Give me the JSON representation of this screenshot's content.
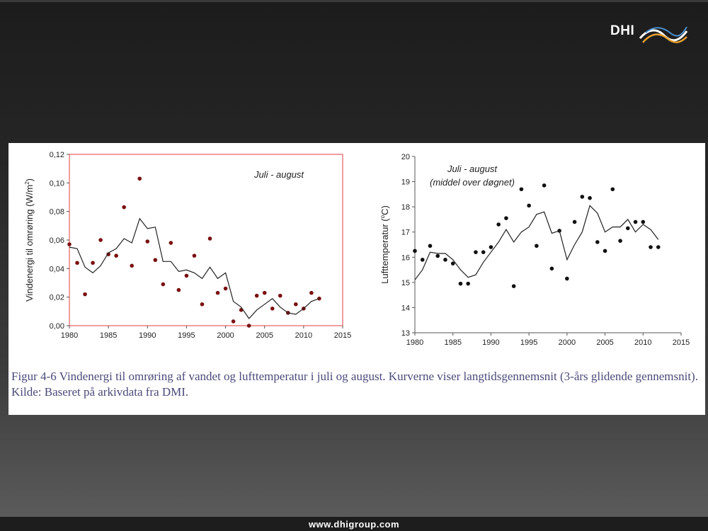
{
  "logo": {
    "text": "DHI"
  },
  "caption": "Figur 4-6 Vindenergi til omrøring af vandet og lufttemperatur i juli og august. Kurverne viser langtidsgennemsnit (3-års glidende gennemsnit). Kilde: Baseret på arkivdata fra DMI.",
  "footer": {
    "url": "www.dhigroup.com"
  },
  "chart_data": [
    {
      "type": "scatter",
      "annotation": "Juli - august",
      "ylabel_prefix": "Vindenergi til omrøring (W/m",
      "ylabel_sup": "2",
      "ylabel_suffix": ")",
      "xlabel": "",
      "xlim": [
        1980,
        2015
      ],
      "ylim": [
        0,
        0.12
      ],
      "xticks": [
        1980,
        1985,
        1990,
        1995,
        2000,
        2005,
        2010,
        2015
      ],
      "yticks": [
        0,
        0.02,
        0.04,
        0.06,
        0.08,
        0.1,
        0.12
      ],
      "ytick_labels": [
        "0,00",
        "0,02",
        "0,04",
        "0,06",
        "0,08",
        "0,10",
        "0,12"
      ],
      "grid": false,
      "frame_color": "#e03c3c",
      "series": [
        {
          "type": "scatter",
          "color": "#7a1010",
          "x": [
            1980,
            1981,
            1982,
            1983,
            1984,
            1985,
            1986,
            1987,
            1988,
            1989,
            1990,
            1991,
            1992,
            1993,
            1994,
            1995,
            1996,
            1997,
            1998,
            1999,
            2000,
            2001,
            2002,
            2003,
            2004,
            2005,
            2006,
            2007,
            2008,
            2009,
            2010,
            2011,
            2012
          ],
          "y": [
            0.057,
            0.044,
            0.022,
            0.044,
            0.06,
            0.05,
            0.049,
            0.083,
            0.042,
            0.103,
            0.059,
            0.046,
            0.029,
            0.058,
            0.025,
            0.035,
            0.049,
            0.015,
            0.061,
            0.023,
            0.026,
            0.003,
            0.011,
            0.0,
            0.021,
            0.023,
            0.012,
            0.021,
            0.009,
            0.015,
            0.012,
            0.023,
            0.019
          ]
        },
        {
          "type": "line",
          "color": "#222222",
          "x": [
            1980,
            1981,
            1982,
            1983,
            1984,
            1985,
            1986,
            1987,
            1988,
            1989,
            1990,
            1991,
            1992,
            1993,
            1994,
            1995,
            1996,
            1997,
            1998,
            1999,
            2000,
            2001,
            2002,
            2003,
            2004,
            2005,
            2006,
            2007,
            2008,
            2009,
            2010,
            2011,
            2012
          ],
          "y": [
            0.055,
            0.054,
            0.041,
            0.037,
            0.042,
            0.051,
            0.054,
            0.061,
            0.058,
            0.075,
            0.068,
            0.069,
            0.045,
            0.045,
            0.038,
            0.039,
            0.037,
            0.033,
            0.041,
            0.033,
            0.037,
            0.017,
            0.013,
            0.005,
            0.011,
            0.015,
            0.019,
            0.013,
            0.009,
            0.008,
            0.012,
            0.017,
            0.019
          ]
        }
      ]
    },
    {
      "type": "scatter",
      "annotation": "Juli - august",
      "annotation2": "(middel over døgnet)",
      "ylabel_prefix": "Lufttemperatur (",
      "ylabel_sup": "o",
      "ylabel_suffix": "C)",
      "xlabel": "",
      "xlim": [
        1980,
        2015
      ],
      "ylim": [
        13,
        20
      ],
      "xticks": [
        1980,
        1985,
        1990,
        1995,
        2000,
        2005,
        2010,
        2015
      ],
      "yticks": [
        13,
        14,
        15,
        16,
        17,
        18,
        19,
        20
      ],
      "ytick_labels": [
        "13",
        "14",
        "15",
        "16",
        "17",
        "18",
        "19",
        "20"
      ],
      "grid": false,
      "series": [
        {
          "type": "scatter",
          "color": "#111111",
          "x": [
            1980,
            1981,
            1982,
            1983,
            1984,
            1985,
            1986,
            1987,
            1988,
            1989,
            1990,
            1991,
            1992,
            1993,
            1994,
            1995,
            1996,
            1997,
            1998,
            1999,
            2000,
            2001,
            2002,
            2003,
            2004,
            2005,
            2006,
            2007,
            2008,
            2009,
            2010,
            2011,
            2012
          ],
          "y": [
            16.25,
            15.9,
            16.45,
            16.05,
            15.9,
            15.75,
            14.95,
            14.95,
            16.2,
            16.2,
            16.4,
            17.3,
            17.55,
            14.85,
            18.7,
            18.05,
            16.45,
            18.85,
            15.55,
            17.05,
            15.15,
            17.4,
            18.4,
            18.35,
            16.6,
            16.25,
            18.7,
            16.65,
            17.15,
            17.4,
            17.4,
            16.4,
            16.4
          ]
        },
        {
          "type": "line",
          "color": "#222222",
          "x": [
            1980,
            1981,
            1982,
            1983,
            1984,
            1985,
            1986,
            1987,
            1988,
            1989,
            1990,
            1991,
            1992,
            1993,
            1994,
            1995,
            1996,
            1997,
            1998,
            1999,
            2000,
            2001,
            2002,
            2003,
            2004,
            2005,
            2006,
            2007,
            2008,
            2009,
            2010,
            2011,
            2012
          ],
          "y": [
            15.1,
            15.5,
            16.2,
            16.15,
            16.15,
            15.9,
            15.5,
            15.2,
            15.3,
            15.8,
            16.2,
            16.6,
            17.1,
            16.6,
            17.0,
            17.2,
            17.7,
            17.8,
            16.95,
            17.05,
            15.9,
            16.5,
            17.0,
            18.05,
            17.75,
            17.0,
            17.2,
            17.2,
            17.5,
            17.0,
            17.3,
            17.1,
            16.7
          ]
        }
      ]
    }
  ]
}
